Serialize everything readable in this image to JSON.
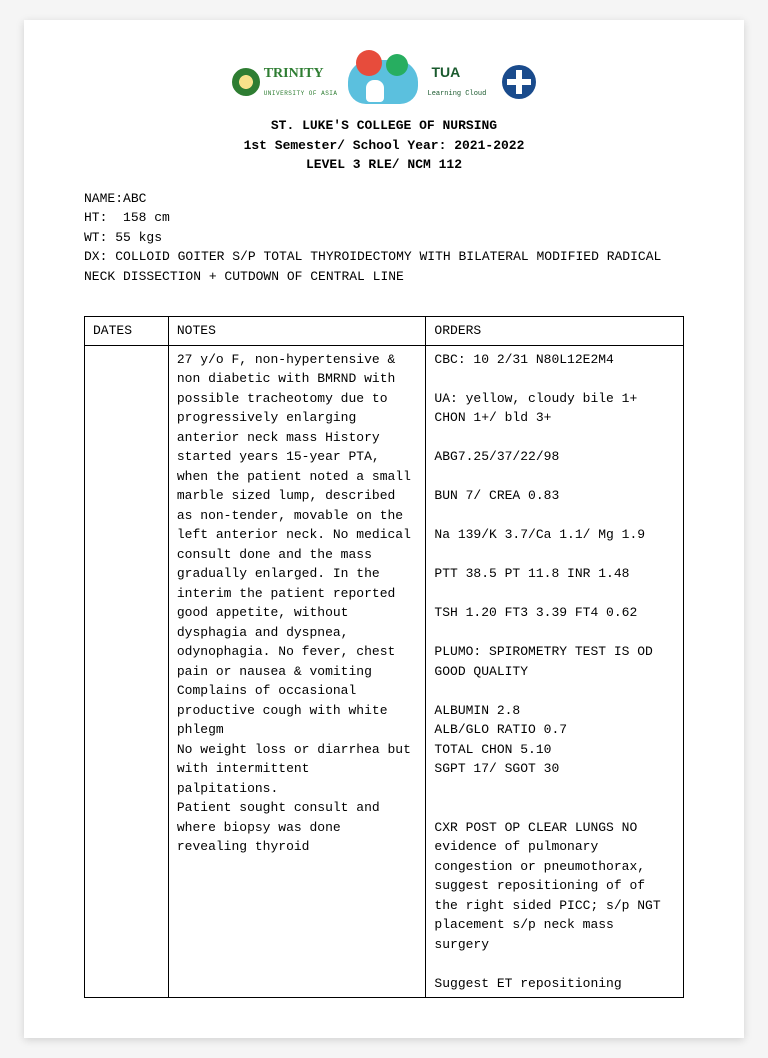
{
  "logos": {
    "trinity_name": "TRINITY",
    "trinity_sub": "UNIVERSITY OF ASIA",
    "tua_name": "TUA",
    "tua_sub": "Learning Cloud"
  },
  "header": {
    "line1": "ST. LUKE'S COLLEGE OF NURSING",
    "line2": "1st Semester/ School Year: 2021-2022",
    "line3": "LEVEL 3 RLE/ NCM 112"
  },
  "info": {
    "name_label": "NAME:",
    "name_value": "ABC",
    "ht_label": "HT:",
    "ht_value": "158 cm",
    "wt_label": "WT:",
    "wt_value": "55 kgs",
    "dx_label": "DX:",
    "dx_value": "COLLOID GOITER S/P TOTAL THYROIDECTOMY WITH BILATERAL MODIFIED RADICAL NECK DISSECTION + CUTDOWN OF CENTRAL LINE"
  },
  "table": {
    "headers": {
      "dates": "DATES",
      "notes": "NOTES",
      "orders": "ORDERS"
    },
    "row": {
      "dates": "",
      "notes": "27 y/o F, non-hypertensive & non diabetic with BMRND with possible tracheotomy due to progressively enlarging anterior neck mass History started years 15-year PTA, when the patient noted a small marble sized lump, described as non-tender, movable on the left anterior neck. No medical consult done and the mass gradually enlarged. In the interim the patient reported good appetite, without dysphagia and dyspnea, odynophagia. No fever, chest pain or nausea & vomiting Complains of occasional productive cough with white phlegm\nNo weight loss or diarrhea but with intermittent palpitations.\nPatient sought consult and where biopsy was done revealing thyroid",
      "orders": "CBC: 10 2/31 N80L12E2M4\n\nUA: yellow, cloudy bile 1+ CHON 1+/ bld 3+\n\nABG7.25/37/22/98\n\nBUN 7/ CREA 0.83\n\nNa 139/K 3.7/Ca 1.1/ Mg 1.9\n\nPTT 38.5 PT 11.8 INR 1.48\n\nTSH 1.20 FT3 3.39 FT4 0.62\n\nPLUMO: SPIROMETRY TEST IS OD GOOD QUALITY\n\nALBUMIN 2.8\nALB/GLO RATIO 0.7\nTOTAL CHON 5.10\nSGPT 17/ SGOT 30\n\n\nCXR POST OP CLEAR LUNGS NO evidence of pulmonary congestion or pneumothorax, suggest repositioning of of the right sided PICC; s/p NGT placement s/p neck mass surgery\n\nSuggest ET repositioning"
    }
  }
}
